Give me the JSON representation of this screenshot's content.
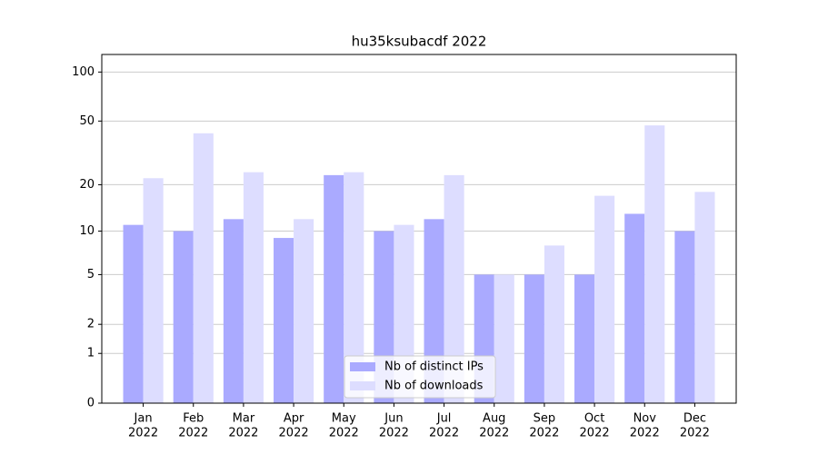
{
  "chart_data": {
    "type": "bar",
    "title": "hu35ksubacdf 2022",
    "categories": [
      [
        "Jan",
        "2022"
      ],
      [
        "Feb",
        "2022"
      ],
      [
        "Mar",
        "2022"
      ],
      [
        "Apr",
        "2022"
      ],
      [
        "May",
        "2022"
      ],
      [
        "Jun",
        "2022"
      ],
      [
        "Jul",
        "2022"
      ],
      [
        "Aug",
        "2022"
      ],
      [
        "Sep",
        "2022"
      ],
      [
        "Oct",
        "2022"
      ],
      [
        "Nov",
        "2022"
      ],
      [
        "Dec",
        "2022"
      ]
    ],
    "series": [
      {
        "name": "Nb of distinct IPs",
        "color": "#aaaaff",
        "values": [
          11,
          10,
          12,
          9,
          23,
          10,
          12,
          5,
          5,
          5,
          13,
          10
        ]
      },
      {
        "name": "Nb of downloads",
        "color": "#ddddff",
        "values": [
          22,
          42,
          24,
          12,
          24,
          11,
          23,
          5,
          8,
          17,
          47,
          18
        ]
      }
    ],
    "yscale": "log1p",
    "ylim": [
      0,
      128
    ],
    "yticks": [
      0,
      1,
      2,
      5,
      10,
      20,
      50,
      100
    ],
    "grid": true,
    "legend": "lower center"
  }
}
